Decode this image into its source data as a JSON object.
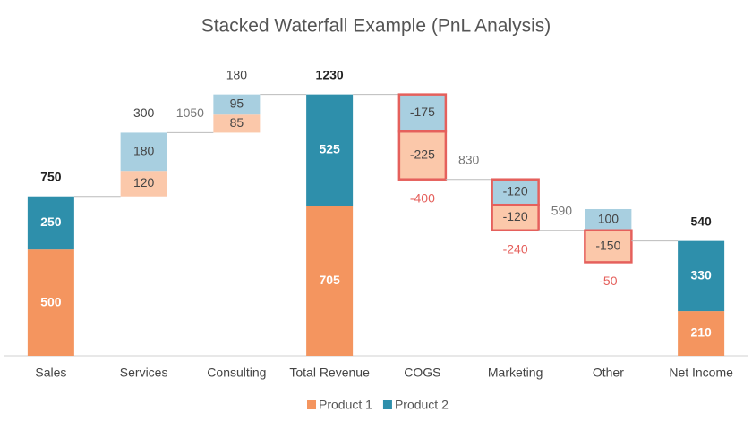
{
  "chart_data": {
    "type": "stacked_waterfall",
    "title": "Stacked Waterfall Example (PnL Analysis)",
    "categories": [
      "Sales",
      "Services",
      "Consulting",
      "Total Revenue",
      "COGS",
      "Marketing",
      "Other",
      "Net Income"
    ],
    "series": [
      {
        "name": "Product 1",
        "color": "#f4955f",
        "increment_color": "#fbc8aa",
        "values": [
          500,
          120,
          85,
          705,
          -225,
          -120,
          -150,
          210
        ]
      },
      {
        "name": "Product 2",
        "color": "#2e8fab",
        "increment_color": "#a8cfe0",
        "values": [
          250,
          180,
          95,
          525,
          -175,
          -120,
          100,
          330
        ]
      }
    ],
    "is_total": [
      true,
      false,
      false,
      true,
      false,
      false,
      false,
      true
    ],
    "totals": [
      750,
      300,
      180,
      1230,
      -400,
      -240,
      -50,
      540
    ],
    "start_labels": [
      null,
      null,
      1050,
      null,
      null,
      830,
      590,
      null
    ],
    "negative_border_color": "#e5605c",
    "ylim": [
      0,
      1300
    ],
    "legend": "bottom"
  }
}
